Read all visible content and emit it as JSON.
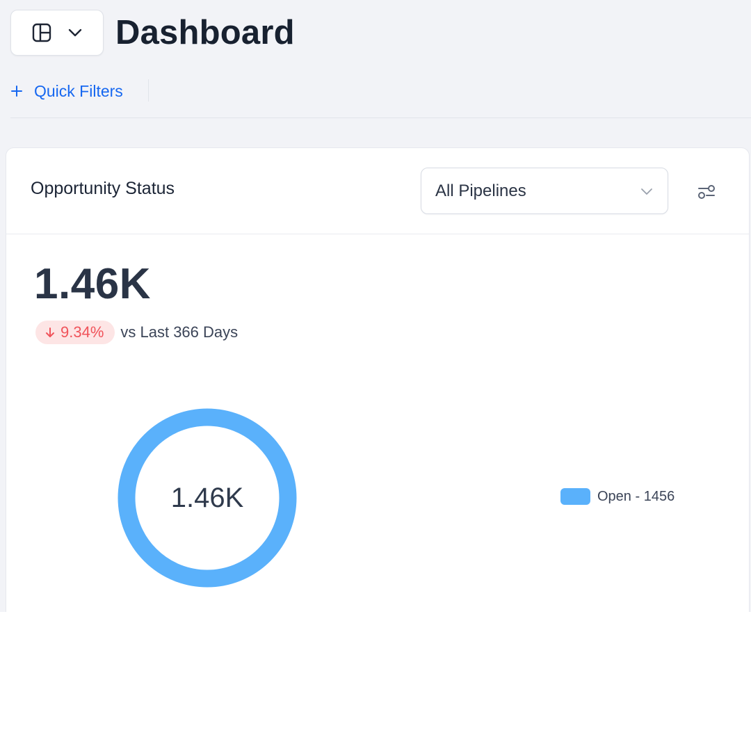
{
  "header": {
    "title": "Dashboard",
    "layout_icon": "layout-panels-icon",
    "chevron_icon": "chevron-down-icon",
    "quick_filters": {
      "icon": "plus-icon",
      "label": "Quick Filters"
    }
  },
  "card": {
    "title": "Opportunity Status",
    "pipeline_select": {
      "value": "All Pipelines"
    },
    "settings_icon": "sliders-icon",
    "total_value": "1.46K",
    "delta": {
      "icon": "arrow-down-icon",
      "value": "9.34%",
      "suffix": "vs Last 366 Days"
    }
  },
  "colors": {
    "accent": "#1667f0",
    "donut": "#5ab1fb",
    "negative": "#f0535a",
    "negative_bg": "#fde5e5"
  },
  "chart_data": {
    "type": "pie",
    "center_label": "1.46K",
    "series": [
      {
        "name": "Open",
        "value": 1456,
        "label": "Open - 1456",
        "color": "#5ab1fb"
      }
    ]
  }
}
